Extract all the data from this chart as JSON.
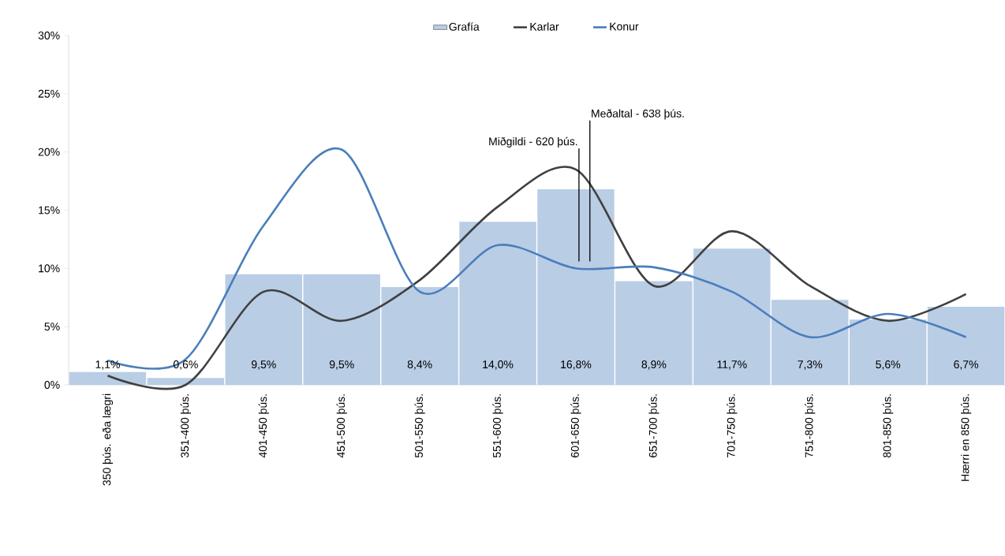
{
  "chart_data": {
    "type": "bar",
    "categories": [
      "350 þús. eða lægri",
      "351-400 þús.",
      "401-450 þús.",
      "451-500 þús.",
      "501-550 þús.",
      "551-600 þús.",
      "601-650 þús.",
      "651-700 þús.",
      "701-750 þús.",
      "751-800 þús.",
      "801-850 þús.",
      "Hærri en 850 þús."
    ],
    "series": [
      {
        "name": "Grafía",
        "color": "#b9cde5",
        "values": [
          1.1,
          0.6,
          9.5,
          9.5,
          8.4,
          14.0,
          16.8,
          8.9,
          11.7,
          7.3,
          5.6,
          6.7
        ],
        "value_labels": [
          "1,1%",
          "0,6%",
          "9,5%",
          "9,5%",
          "8,4%",
          "14,0%",
          "16,8%",
          "8,9%",
          "11,7%",
          "7,3%",
          "5,6%",
          "6,7%"
        ]
      },
      {
        "name": "Karlar",
        "type": "line",
        "color": "#404040",
        "values": [
          0.8,
          0.0,
          8.0,
          5.5,
          9.0,
          15.3,
          18.5,
          8.5,
          13.2,
          8.5,
          5.5,
          7.8
        ]
      },
      {
        "name": "Konur",
        "type": "line",
        "color": "#4a7ebb",
        "values": [
          2.1,
          2.2,
          13.7,
          20.2,
          8.0,
          12.0,
          10.0,
          10.1,
          8.0,
          4.1,
          6.1,
          4.1
        ]
      }
    ],
    "ylim": [
      0,
      30
    ],
    "yticks": [
      {
        "value": 0,
        "label": "0%"
      },
      {
        "value": 5,
        "label": "5%"
      },
      {
        "value": 10,
        "label": "10%"
      },
      {
        "value": 15,
        "label": "15%"
      },
      {
        "value": 20,
        "label": "20%"
      },
      {
        "value": 25,
        "label": "25%"
      },
      {
        "value": 30,
        "label": "30%"
      }
    ],
    "annotations": [
      "Miðgildi - 620 þús.",
      "Meðaltal - 638 þús."
    ],
    "legend": "top"
  }
}
